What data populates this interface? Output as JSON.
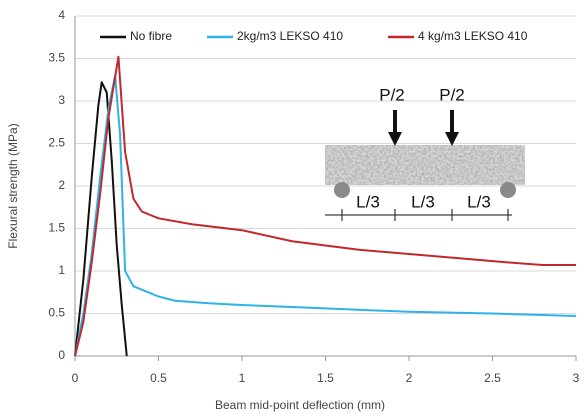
{
  "chart_data": {
    "type": "line",
    "xlabel": "Beam mid-point deflection (mm)",
    "ylabel": "Flexural strength (MPa)",
    "xlim": [
      0,
      3
    ],
    "xticks": [
      0,
      0.5,
      1,
      1.5,
      2,
      2.5,
      3
    ],
    "ylim": [
      0,
      4
    ],
    "yticks": [
      0,
      0.5,
      1,
      1.5,
      2,
      2.5,
      3,
      3.5,
      4
    ],
    "grid": true,
    "legend": "top",
    "series": [
      {
        "name": "No fibre",
        "color": "#111111",
        "x": [
          0,
          0.05,
          0.1,
          0.14,
          0.16,
          0.19,
          0.22,
          0.25,
          0.28,
          0.31
        ],
        "values": [
          0,
          0.9,
          2.1,
          2.95,
          3.22,
          3.1,
          2.3,
          1.3,
          0.6,
          0
        ]
      },
      {
        "name": "2kg/m3 LEKSO 410",
        "color": "#2cb4e6",
        "x": [
          0,
          0.05,
          0.1,
          0.15,
          0.2,
          0.24,
          0.27,
          0.3,
          0.35,
          0.4,
          0.5,
          0.6,
          0.8,
          1,
          1.5,
          2,
          2.5,
          3
        ],
        "values": [
          0,
          0.5,
          1.2,
          2.1,
          2.9,
          3.3,
          2.6,
          1.0,
          0.82,
          0.78,
          0.7,
          0.65,
          0.62,
          0.6,
          0.56,
          0.52,
          0.5,
          0.47
        ]
      },
      {
        "name": "4 kg/m3 LEKSO 410",
        "color": "#c0282d",
        "x": [
          0,
          0.05,
          0.1,
          0.15,
          0.2,
          0.26,
          0.3,
          0.35,
          0.4,
          0.5,
          0.7,
          1,
          1.3,
          1.7,
          2,
          2.3,
          2.6,
          2.8,
          3
        ],
        "values": [
          0,
          0.4,
          1.1,
          1.9,
          2.8,
          3.52,
          2.4,
          1.85,
          1.7,
          1.62,
          1.55,
          1.48,
          1.35,
          1.25,
          1.2,
          1.15,
          1.1,
          1.07,
          1.07
        ]
      }
    ],
    "inset": {
      "loads": [
        "P/2",
        "P/2"
      ],
      "spans": [
        "L/3",
        "L/3",
        "L/3"
      ]
    }
  }
}
